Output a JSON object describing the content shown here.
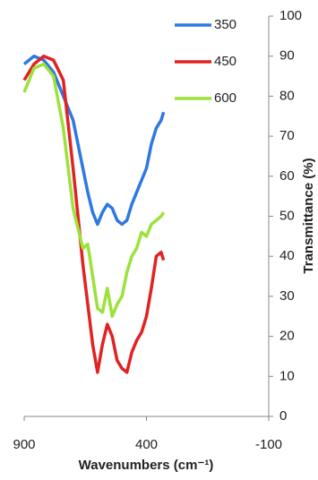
{
  "chart_data": {
    "type": "line",
    "xlabel": "Wavenumbers (cm⁻¹)",
    "ylabel": "Transmittance (%)",
    "x": [
      900,
      860,
      820,
      780,
      740,
      700,
      660,
      640,
      620,
      600,
      580,
      560,
      540,
      520,
      500,
      480,
      460,
      440,
      420,
      400,
      380,
      360,
      340,
      330
    ],
    "series": [
      {
        "name": "350",
        "color": "#2e78e2",
        "values": [
          88,
          90,
          89,
          86,
          80,
          74,
          62,
          56,
          51,
          48,
          51,
          53,
          52,
          49,
          48,
          49,
          53,
          56,
          59,
          62,
          68,
          72,
          74,
          76
        ]
      },
      {
        "name": "450",
        "color": "#e12222",
        "values": [
          84,
          88,
          90,
          89,
          84,
          62,
          38,
          28,
          18,
          11,
          18,
          23,
          20,
          14,
          12,
          11,
          16,
          19,
          21,
          25,
          32,
          40,
          41,
          39
        ]
      },
      {
        "name": "600",
        "color": "#9be23a",
        "values": [
          81,
          87,
          88,
          85,
          72,
          52,
          42,
          43,
          35,
          27,
          26,
          32,
          25,
          28,
          30,
          36,
          40,
          42,
          46,
          45,
          48,
          49,
          50,
          51
        ]
      }
    ],
    "xlim": [
      900,
      -100
    ],
    "xticks": [
      900,
      400,
      -100
    ],
    "ylim": [
      0,
      100
    ],
    "yticks": [
      0,
      10,
      20,
      30,
      40,
      50,
      60,
      70,
      80,
      90,
      100
    ],
    "y_axis_side": "right",
    "grid": false
  }
}
